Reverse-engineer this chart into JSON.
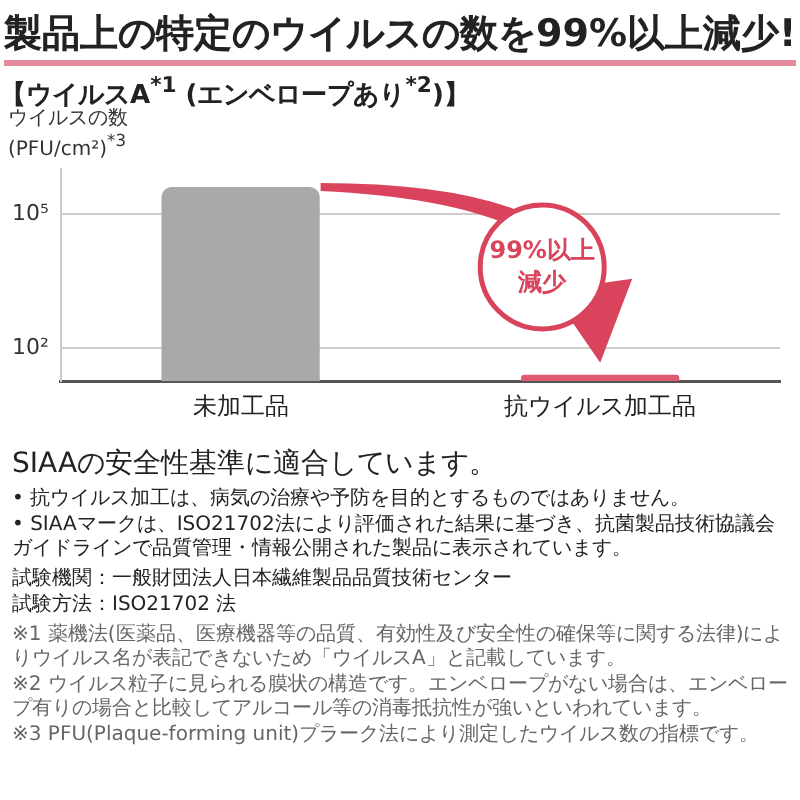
{
  "chart_data": {
    "type": "bar",
    "title": "製品上の特定のウイルスの数を99%以上減少!",
    "subtitle": "【ウイルスA$^{*1}$ (エンベロープあり$^{*2}$)】",
    "ylabel": "ウイルスの数 (PFU/cm²)$^{*3}$",
    "categories": [
      "未加工品",
      "抗ウイルス加工品"
    ],
    "values": [
      400000,
      25
    ],
    "colors": [
      "#a7a9ab",
      "#e05a70"
    ],
    "log": true,
    "ylim": [
      18,
      1000000
    ],
    "yticks": [
      {
        "value": 100,
        "label": "10²"
      },
      {
        "value": 100000,
        "label": "10⁵"
      }
    ],
    "grid": "y",
    "legend": false,
    "annotations": [
      "99%以上減少",
      "SIAAの安全性基準に適合しています。",
      "• 抗ウイルス加工は、病気の治療や予防を目的とするものではありません。",
      "• SIAAマークは、ISO21702法により評価された結果に基づき、抗菌製品技術協議会ガイドラインで品質管理・情報公開された製品に表示されています。",
      "試験機関：一般財団法人日本繊維製品品質技術センター",
      "試験方法：ISO21702 法",
      "※1 薬機法(医薬品、医療機器等の品質、有効性及び安全性の確保等に関する法律)によりウイルス名が表記できないため「ウイルスA」と記載しています。",
      "※2 ウイルス粒子に見られる膜状の構造です。エンベロープがない場合は、エンベロープ有りの場合と比較してアルコール等の消毒抵抗性が強いといわれています。",
      "※3 PFU(Plaque-forming unit)プラーク法により測定したウイルス数の指標です。"
    ]
  }
}
